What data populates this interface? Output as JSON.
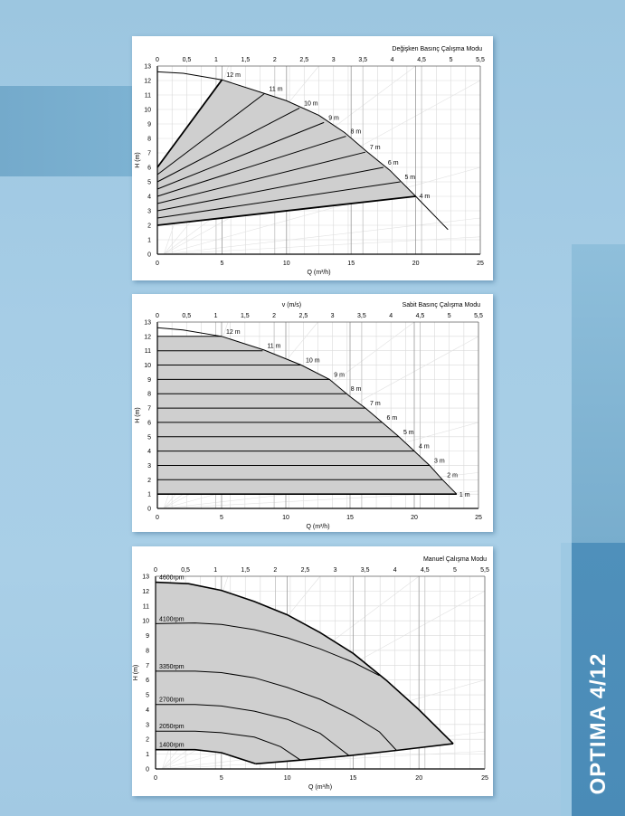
{
  "side_label": "OPTIMA 4/12",
  "colors": {
    "fill": "#cfcfcf",
    "grid_major": "#9a9a9a",
    "grid_minor": "#d9d9d9",
    "curve": "#000000",
    "eff_lines": "#e2e2e2"
  },
  "chart_data": [
    {
      "type": "area",
      "title": "Değişken Basınç Çalışma Modu",
      "xlabel": "Q (m³/h)",
      "ylabel": "H (m)",
      "top_axis_label": "",
      "xlim": [
        0,
        25
      ],
      "ylim": [
        0,
        13
      ],
      "top_xlim": [
        0,
        5.5
      ],
      "x_ticks": [
        "0",
        "5",
        "10",
        "15",
        "20",
        "25"
      ],
      "y_ticks": [
        "0",
        "1",
        "2",
        "3",
        "4",
        "5",
        "6",
        "7",
        "8",
        "9",
        "10",
        "11",
        "12",
        "13"
      ],
      "top_ticks": [
        "0",
        "0,5",
        "1",
        "1,5",
        "2",
        "2,5",
        "3",
        "3,5",
        "4",
        "4,5",
        "5",
        "5,5"
      ],
      "max_curve": [
        [
          0,
          12.6
        ],
        [
          2,
          12.5
        ],
        [
          5,
          12.05
        ],
        [
          8.3,
          11.1
        ],
        [
          10,
          10.6
        ],
        [
          12.5,
          9.6
        ],
        [
          14.5,
          8.4
        ],
        [
          16.2,
          7.1
        ],
        [
          18,
          5.8
        ],
        [
          20,
          4.0
        ],
        [
          22.5,
          1.7
        ]
      ],
      "series": [
        {
          "name": "12 m",
          "points": [
            [
              0,
              6
            ],
            [
              5,
              12.05
            ]
          ]
        },
        {
          "name": "11 m",
          "points": [
            [
              0,
              5.5
            ],
            [
              8.3,
              11.1
            ]
          ]
        },
        {
          "name": "10 m",
          "points": [
            [
              0,
              5
            ],
            [
              11,
              10.1
            ]
          ]
        },
        {
          "name": "9 m",
          "points": [
            [
              0,
              4.5
            ],
            [
              12.9,
              9.1
            ]
          ]
        },
        {
          "name": "8 m",
          "points": [
            [
              0,
              4
            ],
            [
              14.6,
              8.15
            ]
          ]
        },
        {
          "name": "7 m",
          "points": [
            [
              0,
              3.5
            ],
            [
              16.1,
              7.05
            ]
          ]
        },
        {
          "name": "6 m",
          "points": [
            [
              0,
              3
            ],
            [
              17.5,
              6.0
            ]
          ]
        },
        {
          "name": "5 m",
          "points": [
            [
              0,
              2.5
            ],
            [
              18.8,
              5.0
            ]
          ]
        },
        {
          "name": "4 m",
          "points": [
            [
              0,
              2
            ],
            [
              20,
              4.0
            ]
          ]
        }
      ]
    },
    {
      "type": "area",
      "title": "Sabit Basınç Çalışma Modu",
      "xlabel": "Q (m³/h)",
      "ylabel": "H (m)",
      "top_axis_label": "v (m/s)",
      "xlim": [
        0,
        25
      ],
      "ylim": [
        0,
        13
      ],
      "top_xlim": [
        0,
        5.5
      ],
      "x_ticks": [
        "0",
        "5",
        "10",
        "15",
        "20",
        "25"
      ],
      "y_ticks": [
        "0",
        "1",
        "2",
        "3",
        "4",
        "5",
        "6",
        "7",
        "8",
        "9",
        "10",
        "11",
        "12",
        "13"
      ],
      "top_ticks": [
        "0",
        "0,5",
        "1",
        "1,5",
        "2",
        "2,5",
        "3",
        "3,5",
        "4",
        "4,5",
        "5",
        "5,5"
      ],
      "max_curve": [
        [
          0,
          12.6
        ],
        [
          2,
          12.45
        ],
        [
          5,
          12.0
        ],
        [
          8.3,
          11.05
        ],
        [
          11.2,
          10.0
        ],
        [
          13.4,
          9.0
        ],
        [
          15,
          7.8
        ],
        [
          16.2,
          7.0
        ],
        [
          17.5,
          6.0
        ],
        [
          18.8,
          5.0
        ],
        [
          20,
          4.0
        ],
        [
          21.2,
          3.0
        ],
        [
          22.2,
          2.0
        ],
        [
          23.3,
          1.0
        ]
      ],
      "series": [
        {
          "name": "12 m",
          "points": [
            [
              0,
              12
            ],
            [
              5,
              12
            ]
          ]
        },
        {
          "name": "11 m",
          "points": [
            [
              0,
              11
            ],
            [
              8.2,
              11
            ]
          ]
        },
        {
          "name": "10 m",
          "points": [
            [
              0,
              10
            ],
            [
              11.2,
              10
            ]
          ]
        },
        {
          "name": "9 m",
          "points": [
            [
              0,
              9
            ],
            [
              13.4,
              9
            ]
          ]
        },
        {
          "name": "8 m",
          "points": [
            [
              0,
              8
            ],
            [
              14.7,
              8
            ]
          ]
        },
        {
          "name": "7 m",
          "points": [
            [
              0,
              7
            ],
            [
              16.2,
              7
            ]
          ]
        },
        {
          "name": "6 m",
          "points": [
            [
              0,
              6
            ],
            [
              17.5,
              6
            ]
          ]
        },
        {
          "name": "5 m",
          "points": [
            [
              0,
              5
            ],
            [
              18.8,
              5
            ]
          ]
        },
        {
          "name": "4 m",
          "points": [
            [
              0,
              4
            ],
            [
              20,
              4
            ]
          ]
        },
        {
          "name": "3 m",
          "points": [
            [
              0,
              3
            ],
            [
              21.2,
              3
            ]
          ]
        },
        {
          "name": "2 m",
          "points": [
            [
              0,
              2
            ],
            [
              22.2,
              2
            ]
          ]
        },
        {
          "name": "1 m",
          "points": [
            [
              0,
              1
            ],
            [
              23.3,
              1
            ]
          ]
        }
      ]
    },
    {
      "type": "area",
      "title": "Manuel Çalışma Modu",
      "xlabel": "Q (m³/h)",
      "ylabel": "H (m)",
      "top_axis_label": "",
      "xlim": [
        0,
        25
      ],
      "ylim": [
        0,
        13
      ],
      "top_xlim": [
        0,
        5.5
      ],
      "x_ticks": [
        "0",
        "5",
        "10",
        "15",
        "20",
        "25"
      ],
      "y_ticks": [
        "0",
        "1",
        "2",
        "3",
        "4",
        "5",
        "6",
        "7",
        "8",
        "9",
        "10",
        "11",
        "12",
        "13"
      ],
      "top_ticks": [
        "0",
        "0,5",
        "1",
        "1,5",
        "2",
        "2,5",
        "3",
        "3,5",
        "4",
        "4,5",
        "5",
        "5,5"
      ],
      "min_curve": [
        [
          7.6,
          0.35
        ],
        [
          11,
          0.6
        ],
        [
          14.7,
          0.9
        ],
        [
          18.3,
          1.25
        ],
        [
          22.6,
          1.7
        ]
      ],
      "series": [
        {
          "name": "4600rpm",
          "points": [
            [
              0,
              12.6
            ],
            [
              2.5,
              12.5
            ],
            [
              5,
              12.05
            ],
            [
              7.5,
              11.3
            ],
            [
              10,
              10.4
            ],
            [
              12.5,
              9.2
            ],
            [
              15,
              7.8
            ],
            [
              17.5,
              6.0
            ],
            [
              20,
              4.0
            ],
            [
              22.6,
              1.7
            ]
          ]
        },
        {
          "name": "4100rpm",
          "points": [
            [
              0,
              9.8
            ],
            [
              3,
              9.85
            ],
            [
              5,
              9.75
            ],
            [
              7.5,
              9.4
            ],
            [
              10,
              8.85
            ],
            [
              12.5,
              8.1
            ],
            [
              15,
              7.2
            ],
            [
              17,
              6.3
            ]
          ]
        },
        {
          "name": "3350rpm",
          "points": [
            [
              0,
              6.6
            ],
            [
              3,
              6.6
            ],
            [
              5,
              6.5
            ],
            [
              7.5,
              6.15
            ],
            [
              10,
              5.5
            ],
            [
              12.5,
              4.7
            ],
            [
              15,
              3.6
            ],
            [
              17,
              2.5
            ],
            [
              18.3,
              1.25
            ]
          ]
        },
        {
          "name": "2700rpm",
          "points": [
            [
              0,
              4.35
            ],
            [
              3,
              4.35
            ],
            [
              5,
              4.25
            ],
            [
              7.5,
              3.9
            ],
            [
              10,
              3.35
            ],
            [
              12.5,
              2.4
            ],
            [
              14.7,
              0.9
            ]
          ]
        },
        {
          "name": "2050rpm",
          "points": [
            [
              0,
              2.55
            ],
            [
              3,
              2.55
            ],
            [
              5,
              2.45
            ],
            [
              7.5,
              2.15
            ],
            [
              9.5,
              1.5
            ],
            [
              11,
              0.6
            ]
          ]
        },
        {
          "name": "1400rpm",
          "points": [
            [
              0,
              1.3
            ],
            [
              3,
              1.3
            ],
            [
              5,
              1.1
            ],
            [
              7.6,
              0.35
            ]
          ]
        }
      ]
    }
  ]
}
